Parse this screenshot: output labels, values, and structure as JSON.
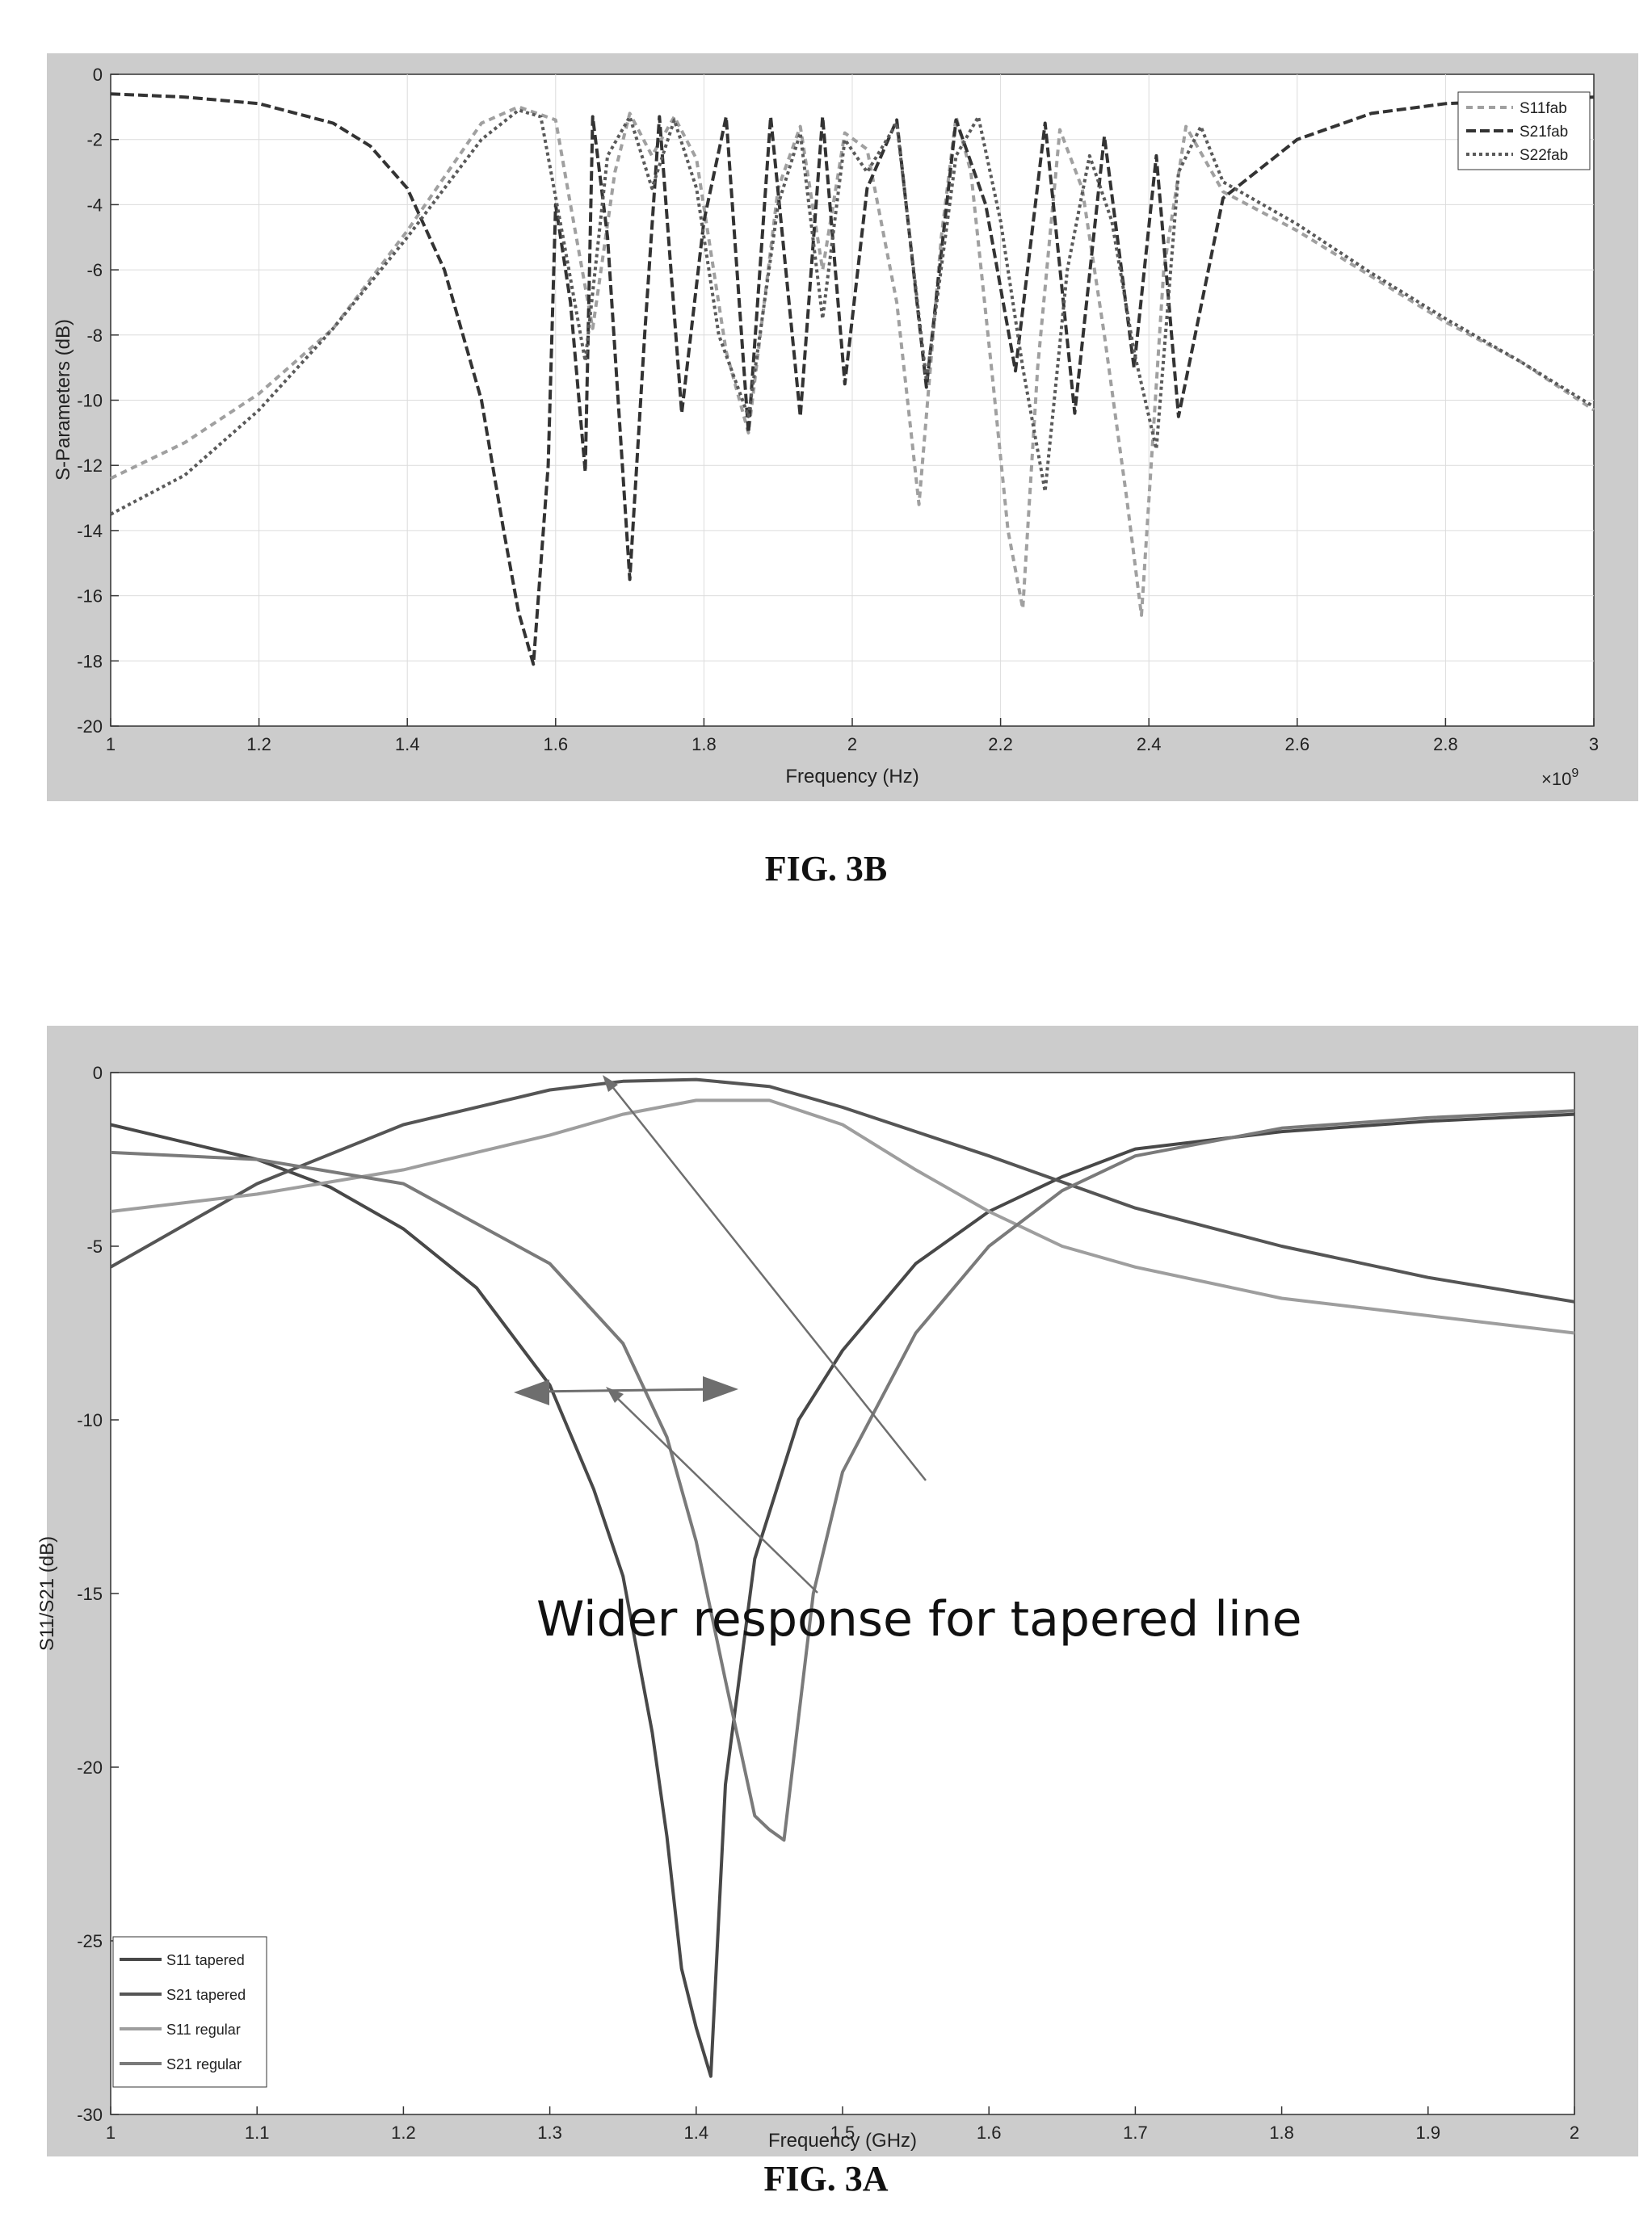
{
  "colors": {
    "frame_gray": "#cccccc",
    "s11fab": "#a0a0a0",
    "s21fab": "#333333",
    "s22fab": "#5a5a5a",
    "s11_tapered": "#484848",
    "s21_tapered": "#555555",
    "s11_regular": "#9e9e9e",
    "s21_regular": "#7a7a7a",
    "arrow": "#6e6e6e"
  },
  "figures": {
    "fig3b": {
      "caption": "FIG. 3B",
      "multiplier_base": "×10",
      "multiplier_exp": "9"
    },
    "fig3a": {
      "caption": "FIG. 3A",
      "annotation": "Wider response for tapered line"
    }
  },
  "chart_data": [
    {
      "id": "fig3b",
      "type": "line",
      "xlabel": "Frequency (Hz)",
      "ylabel": "S-Parameters (dB)",
      "xlim": [
        1,
        3
      ],
      "ylim": [
        -20,
        0
      ],
      "x_scale_exponent": 9,
      "xticks": [
        1,
        1.2,
        1.4,
        1.6,
        1.8,
        2,
        2.2,
        2.4,
        2.6,
        2.8,
        3
      ],
      "xtick_labels": [
        "1",
        "1.2",
        "1.4",
        "1.6",
        "1.8",
        "2",
        "2.2",
        "2.4",
        "2.6",
        "2.8",
        "3"
      ],
      "yticks": [
        0,
        -2,
        -4,
        -6,
        -8,
        -10,
        -12,
        -14,
        -16,
        -18,
        -20
      ],
      "ytick_labels": [
        "0",
        "-2",
        "-4",
        "-6",
        "-8",
        "-10",
        "-12",
        "-14",
        "-16",
        "-18",
        "-20"
      ],
      "grid": true,
      "legend_position": "top-right",
      "series": [
        {
          "name": "S11fab",
          "color": "#a0a0a0",
          "dash": "8 6",
          "x": [
            1.0,
            1.1,
            1.2,
            1.3,
            1.4,
            1.5,
            1.55,
            1.6,
            1.62,
            1.65,
            1.68,
            1.7,
            1.73,
            1.76,
            1.79,
            1.83,
            1.86,
            1.9,
            1.93,
            1.96,
            1.99,
            2.02,
            2.06,
            2.09,
            2.12,
            2.14,
            2.16,
            2.19,
            2.21,
            2.23,
            2.25,
            2.28,
            2.31,
            2.34,
            2.37,
            2.39,
            2.42,
            2.45,
            2.5,
            2.6,
            2.7,
            2.8,
            2.9,
            3.0
          ],
          "y": [
            -12.4,
            -11.3,
            -9.8,
            -7.8,
            -4.8,
            -1.5,
            -1.0,
            -1.4,
            -4.0,
            -7.8,
            -3.0,
            -1.2,
            -2.5,
            -1.3,
            -2.6,
            -8.5,
            -11.0,
            -3.5,
            -1.6,
            -6.0,
            -1.8,
            -2.3,
            -7.0,
            -13.2,
            -5.0,
            -1.3,
            -3.0,
            -9.5,
            -14.0,
            -16.4,
            -9.0,
            -1.7,
            -3.5,
            -8.0,
            -13.0,
            -16.6,
            -6.0,
            -1.6,
            -3.6,
            -4.8,
            -6.2,
            -7.6,
            -8.8,
            -10.3
          ]
        },
        {
          "name": "S21fab",
          "color": "#333333",
          "dash": "12 5",
          "x": [
            1.0,
            1.1,
            1.2,
            1.3,
            1.35,
            1.4,
            1.45,
            1.5,
            1.53,
            1.55,
            1.57,
            1.59,
            1.6,
            1.62,
            1.64,
            1.65,
            1.67,
            1.7,
            1.72,
            1.74,
            1.77,
            1.8,
            1.83,
            1.86,
            1.89,
            1.93,
            1.96,
            1.99,
            2.02,
            2.06,
            2.1,
            2.14,
            2.18,
            2.22,
            2.26,
            2.3,
            2.34,
            2.38,
            2.41,
            2.44,
            2.5,
            2.6,
            2.7,
            2.8,
            2.9,
            3.0
          ],
          "y": [
            -0.6,
            -0.7,
            -0.9,
            -1.5,
            -2.2,
            -3.5,
            -6.0,
            -10.0,
            -14.0,
            -16.5,
            -18.1,
            -12.0,
            -4.0,
            -7.0,
            -12.2,
            -1.3,
            -5.0,
            -15.5,
            -8.0,
            -1.3,
            -10.4,
            -4.5,
            -1.3,
            -11.0,
            -1.3,
            -10.5,
            -1.3,
            -9.5,
            -3.5,
            -1.4,
            -9.6,
            -1.4,
            -4.0,
            -9.1,
            -1.5,
            -10.4,
            -1.9,
            -9.0,
            -2.5,
            -10.5,
            -3.8,
            -2.0,
            -1.2,
            -0.9,
            -0.8,
            -0.7
          ]
        },
        {
          "name": "S22fab",
          "color": "#5a5a5a",
          "dash": "4 4",
          "x": [
            1.0,
            1.1,
            1.2,
            1.3,
            1.4,
            1.5,
            1.55,
            1.58,
            1.61,
            1.64,
            1.67,
            1.7,
            1.73,
            1.76,
            1.79,
            1.82,
            1.86,
            1.9,
            1.93,
            1.96,
            1.99,
            2.02,
            2.06,
            2.1,
            2.14,
            2.17,
            2.2,
            2.23,
            2.26,
            2.29,
            2.32,
            2.35,
            2.38,
            2.41,
            2.44,
            2.47,
            2.5,
            2.6,
            2.7,
            2.8,
            2.9,
            3.0
          ],
          "y": [
            -13.5,
            -12.3,
            -10.3,
            -7.8,
            -5.0,
            -2.0,
            -1.1,
            -1.3,
            -5.0,
            -8.8,
            -2.5,
            -1.3,
            -3.5,
            -1.4,
            -3.5,
            -8.0,
            -10.5,
            -4.0,
            -1.8,
            -7.5,
            -2.0,
            -3.0,
            -1.5,
            -9.4,
            -2.5,
            -1.3,
            -4.5,
            -9.0,
            -12.8,
            -6.0,
            -2.5,
            -4.5,
            -8.5,
            -11.5,
            -3.0,
            -1.6,
            -3.3,
            -4.6,
            -6.1,
            -7.5,
            -8.8,
            -10.2
          ]
        }
      ]
    },
    {
      "id": "fig3a",
      "type": "line",
      "xlabel": "Frequency (GHz)",
      "ylabel": "S11/S21 (dB)",
      "xlim": [
        1,
        2
      ],
      "ylim": [
        -30,
        0
      ],
      "xticks": [
        1,
        1.1,
        1.2,
        1.3,
        1.4,
        1.5,
        1.6,
        1.7,
        1.8,
        1.9,
        2
      ],
      "xtick_labels": [
        "1",
        "1.1",
        "1.2",
        "1.3",
        "1.4",
        "1.5",
        "1.6",
        "1.7",
        "1.8",
        "1.9",
        "2"
      ],
      "yticks": [
        0,
        -5,
        -10,
        -15,
        -20,
        -25,
        -30
      ],
      "ytick_labels": [
        "0",
        "-5",
        "-10",
        "-15",
        "-20",
        "-25",
        "-30"
      ],
      "grid": false,
      "legend_position": "bottom-left",
      "series": [
        {
          "name": "S11 tapered",
          "color": "#484848",
          "x": [
            1.0,
            1.1,
            1.15,
            1.2,
            1.25,
            1.3,
            1.33,
            1.35,
            1.37,
            1.38,
            1.39,
            1.4,
            1.41,
            1.42,
            1.44,
            1.47,
            1.5,
            1.55,
            1.6,
            1.65,
            1.7,
            1.8,
            1.9,
            2.0
          ],
          "y": [
            -1.5,
            -2.5,
            -3.3,
            -4.5,
            -6.2,
            -9.0,
            -12.0,
            -14.5,
            -19.0,
            -22.0,
            -25.8,
            -27.5,
            -28.9,
            -20.5,
            -14.0,
            -10.0,
            -8.0,
            -5.5,
            -4.0,
            -3.0,
            -2.2,
            -1.7,
            -1.4,
            -1.2
          ]
        },
        {
          "name": "S21 tapered",
          "color": "#555555",
          "x": [
            1.0,
            1.1,
            1.2,
            1.3,
            1.35,
            1.4,
            1.45,
            1.5,
            1.6,
            1.7,
            1.8,
            1.9,
            2.0
          ],
          "y": [
            -5.6,
            -3.2,
            -1.5,
            -0.5,
            -0.25,
            -0.2,
            -0.4,
            -1.0,
            -2.4,
            -3.9,
            -5.0,
            -5.9,
            -6.6
          ]
        },
        {
          "name": "S11 regular",
          "color": "#9e9e9e",
          "x": [
            1.0,
            1.1,
            1.2,
            1.3,
            1.35,
            1.4,
            1.45,
            1.5,
            1.55,
            1.6,
            1.65,
            1.7,
            1.8,
            1.9,
            2.0
          ],
          "y": [
            -4.0,
            -3.5,
            -2.8,
            -1.8,
            -1.2,
            -0.8,
            -0.8,
            -1.5,
            -2.8,
            -4.0,
            -5.0,
            -5.6,
            -6.5,
            -7.0,
            -7.5
          ]
        },
        {
          "name": "S21 regular",
          "color": "#7a7a7a",
          "x": [
            1.0,
            1.1,
            1.2,
            1.3,
            1.35,
            1.38,
            1.4,
            1.42,
            1.44,
            1.45,
            1.46,
            1.48,
            1.5,
            1.55,
            1.6,
            1.65,
            1.7,
            1.8,
            1.9,
            2.0
          ],
          "y": [
            -2.3,
            -2.5,
            -3.2,
            -5.5,
            -7.8,
            -10.5,
            -13.5,
            -17.5,
            -21.4,
            -21.8,
            -22.1,
            -15.0,
            -11.5,
            -7.5,
            -5.0,
            -3.4,
            -2.4,
            -1.6,
            -1.3,
            -1.1
          ]
        }
      ]
    }
  ]
}
